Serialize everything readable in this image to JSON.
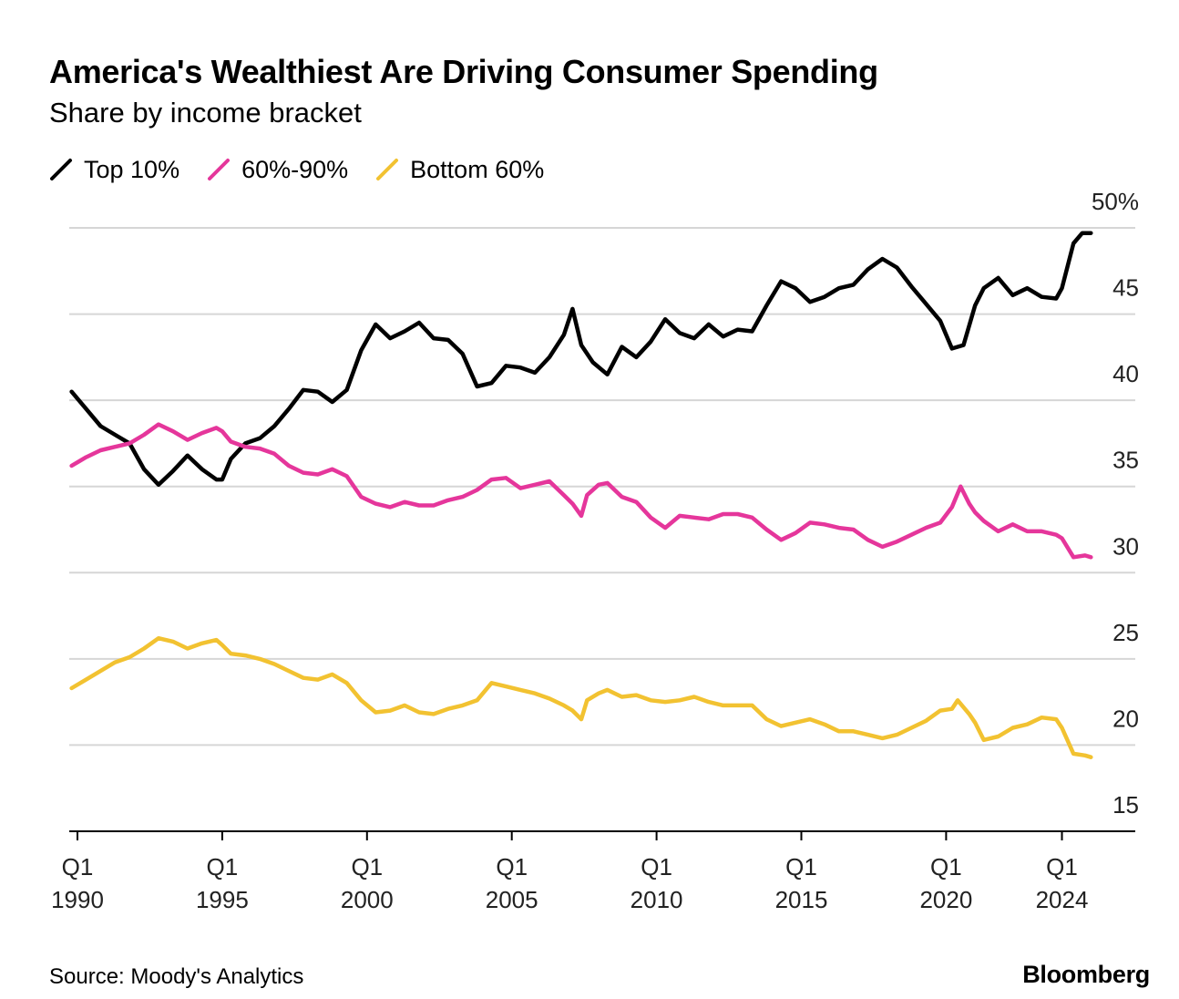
{
  "title": "America's Wealthiest Are Driving Consumer Spending",
  "subtitle": "Share by income bracket",
  "source": "Source: Moody's Analytics",
  "brand": "Bloomberg",
  "chart_data": {
    "type": "line",
    "title": "America's Wealthiest Are Driving Consumer Spending",
    "subtitle": "Share by income bracket",
    "xlabel": "",
    "ylabel": "",
    "ylim": [
      15,
      50
    ],
    "xlim": [
      1989.8,
      2026.3
    ],
    "y_ticks": [
      {
        "value": 50,
        "label": "50%"
      },
      {
        "value": 45,
        "label": "45"
      },
      {
        "value": 40,
        "label": "40"
      },
      {
        "value": 35,
        "label": "35"
      },
      {
        "value": 30,
        "label": "30"
      },
      {
        "value": 25,
        "label": "25"
      },
      {
        "value": 20,
        "label": "20"
      },
      {
        "value": 15,
        "label": "15"
      }
    ],
    "x_ticks": [
      {
        "value": 1990.0,
        "line1": "Q1",
        "line2": "1990"
      },
      {
        "value": 1995.0,
        "line1": "Q1",
        "line2": "1995"
      },
      {
        "value": 2000.0,
        "line1": "Q1",
        "line2": "2000"
      },
      {
        "value": 2005.0,
        "line1": "Q1",
        "line2": "2005"
      },
      {
        "value": 2010.0,
        "line1": "Q1",
        "line2": "2010"
      },
      {
        "value": 2015.0,
        "line1": "Q1",
        "line2": "2015"
      },
      {
        "value": 2020.0,
        "line1": "Q1",
        "line2": "2020"
      },
      {
        "value": 2024.0,
        "line1": "Q1",
        "line2": "2024"
      }
    ],
    "grid": true,
    "legend_position": "top-left",
    "series": [
      {
        "name": "Top 10%",
        "color": "#000000",
        "points": [
          [
            1989.8,
            40.5
          ],
          [
            1990.3,
            39.5
          ],
          [
            1990.8,
            38.5
          ],
          [
            1991.3,
            38.0
          ],
          [
            1991.8,
            37.5
          ],
          [
            1992.3,
            36.0
          ],
          [
            1992.8,
            35.1
          ],
          [
            1993.3,
            35.9
          ],
          [
            1993.8,
            36.8
          ],
          [
            1994.3,
            36.0
          ],
          [
            1994.8,
            35.4
          ],
          [
            1995.0,
            35.4
          ],
          [
            1995.3,
            36.6
          ],
          [
            1995.8,
            37.5
          ],
          [
            1996.3,
            37.8
          ],
          [
            1996.8,
            38.5
          ],
          [
            1997.3,
            39.5
          ],
          [
            1997.8,
            40.6
          ],
          [
            1998.3,
            40.5
          ],
          [
            1998.8,
            39.9
          ],
          [
            1999.3,
            40.6
          ],
          [
            1999.8,
            42.9
          ],
          [
            2000.3,
            44.4
          ],
          [
            2000.8,
            43.6
          ],
          [
            2001.3,
            44.0
          ],
          [
            2001.8,
            44.5
          ],
          [
            2002.3,
            43.6
          ],
          [
            2002.8,
            43.5
          ],
          [
            2003.3,
            42.7
          ],
          [
            2003.8,
            40.8
          ],
          [
            2004.3,
            41.0
          ],
          [
            2004.8,
            42.0
          ],
          [
            2005.3,
            41.9
          ],
          [
            2005.8,
            41.6
          ],
          [
            2006.3,
            42.5
          ],
          [
            2006.8,
            43.8
          ],
          [
            2007.1,
            45.3
          ],
          [
            2007.4,
            43.2
          ],
          [
            2007.8,
            42.2
          ],
          [
            2008.3,
            41.5
          ],
          [
            2008.8,
            43.1
          ],
          [
            2009.3,
            42.5
          ],
          [
            2009.8,
            43.4
          ],
          [
            2010.3,
            44.7
          ],
          [
            2010.8,
            43.9
          ],
          [
            2011.3,
            43.6
          ],
          [
            2011.8,
            44.4
          ],
          [
            2012.3,
            43.7
          ],
          [
            2012.8,
            44.1
          ],
          [
            2013.3,
            44.0
          ],
          [
            2013.8,
            45.5
          ],
          [
            2014.3,
            46.9
          ],
          [
            2014.8,
            46.5
          ],
          [
            2015.3,
            45.7
          ],
          [
            2015.8,
            46.0
          ],
          [
            2016.3,
            46.5
          ],
          [
            2016.8,
            46.7
          ],
          [
            2017.3,
            47.6
          ],
          [
            2017.8,
            48.2
          ],
          [
            2018.3,
            47.7
          ],
          [
            2018.8,
            46.6
          ],
          [
            2019.3,
            45.6
          ],
          [
            2019.8,
            44.6
          ],
          [
            2020.2,
            43.0
          ],
          [
            2020.6,
            43.2
          ],
          [
            2021.0,
            45.5
          ],
          [
            2021.3,
            46.5
          ],
          [
            2021.8,
            47.1
          ],
          [
            2022.3,
            46.1
          ],
          [
            2022.8,
            46.5
          ],
          [
            2023.3,
            46.0
          ],
          [
            2023.8,
            45.9
          ],
          [
            2024.0,
            46.5
          ],
          [
            2024.4,
            49.1
          ],
          [
            2024.7,
            49.7
          ],
          [
            2025.0,
            49.7
          ]
        ]
      },
      {
        "name": "60%-90%",
        "color": "#e5369b",
        "points": [
          [
            1989.8,
            36.2
          ],
          [
            1990.3,
            36.7
          ],
          [
            1990.8,
            37.1
          ],
          [
            1991.3,
            37.3
          ],
          [
            1991.8,
            37.5
          ],
          [
            1992.3,
            38.0
          ],
          [
            1992.8,
            38.6
          ],
          [
            1993.3,
            38.2
          ],
          [
            1993.8,
            37.7
          ],
          [
            1994.3,
            38.1
          ],
          [
            1994.8,
            38.4
          ],
          [
            1995.0,
            38.2
          ],
          [
            1995.3,
            37.6
          ],
          [
            1995.8,
            37.3
          ],
          [
            1996.3,
            37.2
          ],
          [
            1996.8,
            36.9
          ],
          [
            1997.3,
            36.2
          ],
          [
            1997.8,
            35.8
          ],
          [
            1998.3,
            35.7
          ],
          [
            1998.8,
            36.0
          ],
          [
            1999.3,
            35.6
          ],
          [
            1999.8,
            34.4
          ],
          [
            2000.3,
            34.0
          ],
          [
            2000.8,
            33.8
          ],
          [
            2001.3,
            34.1
          ],
          [
            2001.8,
            33.9
          ],
          [
            2002.3,
            33.9
          ],
          [
            2002.8,
            34.2
          ],
          [
            2003.3,
            34.4
          ],
          [
            2003.8,
            34.8
          ],
          [
            2004.3,
            35.4
          ],
          [
            2004.8,
            35.5
          ],
          [
            2005.3,
            34.9
          ],
          [
            2005.8,
            35.1
          ],
          [
            2006.3,
            35.3
          ],
          [
            2006.8,
            34.5
          ],
          [
            2007.1,
            34.0
          ],
          [
            2007.4,
            33.3
          ],
          [
            2007.6,
            34.5
          ],
          [
            2008.0,
            35.1
          ],
          [
            2008.3,
            35.2
          ],
          [
            2008.8,
            34.4
          ],
          [
            2009.3,
            34.1
          ],
          [
            2009.8,
            33.2
          ],
          [
            2010.3,
            32.6
          ],
          [
            2010.8,
            33.3
          ],
          [
            2011.3,
            33.2
          ],
          [
            2011.8,
            33.1
          ],
          [
            2012.3,
            33.4
          ],
          [
            2012.8,
            33.4
          ],
          [
            2013.3,
            33.2
          ],
          [
            2013.8,
            32.5
          ],
          [
            2014.3,
            31.9
          ],
          [
            2014.8,
            32.3
          ],
          [
            2015.3,
            32.9
          ],
          [
            2015.8,
            32.8
          ],
          [
            2016.3,
            32.6
          ],
          [
            2016.8,
            32.5
          ],
          [
            2017.3,
            31.9
          ],
          [
            2017.8,
            31.5
          ],
          [
            2018.3,
            31.8
          ],
          [
            2018.8,
            32.2
          ],
          [
            2019.3,
            32.6
          ],
          [
            2019.8,
            32.9
          ],
          [
            2020.2,
            33.8
          ],
          [
            2020.5,
            35.0
          ],
          [
            2020.8,
            34.0
          ],
          [
            2021.0,
            33.5
          ],
          [
            2021.3,
            33.0
          ],
          [
            2021.8,
            32.4
          ],
          [
            2022.3,
            32.8
          ],
          [
            2022.8,
            32.4
          ],
          [
            2023.3,
            32.4
          ],
          [
            2023.8,
            32.2
          ],
          [
            2024.0,
            32.0
          ],
          [
            2024.4,
            30.9
          ],
          [
            2024.8,
            31.0
          ],
          [
            2025.0,
            30.9
          ]
        ]
      },
      {
        "name": "Bottom 60%",
        "color": "#f2c231",
        "points": [
          [
            1989.8,
            23.3
          ],
          [
            1990.3,
            23.8
          ],
          [
            1990.8,
            24.3
          ],
          [
            1991.3,
            24.8
          ],
          [
            1991.8,
            25.1
          ],
          [
            1992.3,
            25.6
          ],
          [
            1992.8,
            26.2
          ],
          [
            1993.3,
            26.0
          ],
          [
            1993.8,
            25.6
          ],
          [
            1994.3,
            25.9
          ],
          [
            1994.8,
            26.1
          ],
          [
            1995.0,
            25.8
          ],
          [
            1995.3,
            25.3
          ],
          [
            1995.8,
            25.2
          ],
          [
            1996.3,
            25.0
          ],
          [
            1996.8,
            24.7
          ],
          [
            1997.3,
            24.3
          ],
          [
            1997.8,
            23.9
          ],
          [
            1998.3,
            23.8
          ],
          [
            1998.8,
            24.1
          ],
          [
            1999.3,
            23.6
          ],
          [
            1999.8,
            22.6
          ],
          [
            2000.3,
            21.9
          ],
          [
            2000.8,
            22.0
          ],
          [
            2001.3,
            22.3
          ],
          [
            2001.8,
            21.9
          ],
          [
            2002.3,
            21.8
          ],
          [
            2002.8,
            22.1
          ],
          [
            2003.3,
            22.3
          ],
          [
            2003.8,
            22.6
          ],
          [
            2004.3,
            23.6
          ],
          [
            2004.8,
            23.4
          ],
          [
            2005.3,
            23.2
          ],
          [
            2005.8,
            23.0
          ],
          [
            2006.3,
            22.7
          ],
          [
            2006.8,
            22.3
          ],
          [
            2007.1,
            22.0
          ],
          [
            2007.4,
            21.5
          ],
          [
            2007.6,
            22.6
          ],
          [
            2008.0,
            23.0
          ],
          [
            2008.3,
            23.2
          ],
          [
            2008.8,
            22.8
          ],
          [
            2009.3,
            22.9
          ],
          [
            2009.8,
            22.6
          ],
          [
            2010.3,
            22.5
          ],
          [
            2010.8,
            22.6
          ],
          [
            2011.3,
            22.8
          ],
          [
            2011.8,
            22.5
          ],
          [
            2012.3,
            22.3
          ],
          [
            2012.8,
            22.3
          ],
          [
            2013.3,
            22.3
          ],
          [
            2013.8,
            21.5
          ],
          [
            2014.3,
            21.1
          ],
          [
            2014.8,
            21.3
          ],
          [
            2015.3,
            21.5
          ],
          [
            2015.8,
            21.2
          ],
          [
            2016.3,
            20.8
          ],
          [
            2016.8,
            20.8
          ],
          [
            2017.3,
            20.6
          ],
          [
            2017.8,
            20.4
          ],
          [
            2018.3,
            20.6
          ],
          [
            2018.8,
            21.0
          ],
          [
            2019.3,
            21.4
          ],
          [
            2019.8,
            22.0
          ],
          [
            2020.2,
            22.1
          ],
          [
            2020.4,
            22.6
          ],
          [
            2020.8,
            21.8
          ],
          [
            2021.0,
            21.3
          ],
          [
            2021.3,
            20.3
          ],
          [
            2021.8,
            20.5
          ],
          [
            2022.3,
            21.0
          ],
          [
            2022.8,
            21.2
          ],
          [
            2023.3,
            21.6
          ],
          [
            2023.8,
            21.5
          ],
          [
            2024.0,
            21.0
          ],
          [
            2024.4,
            19.5
          ],
          [
            2024.8,
            19.4
          ],
          [
            2025.0,
            19.3
          ]
        ]
      }
    ]
  }
}
